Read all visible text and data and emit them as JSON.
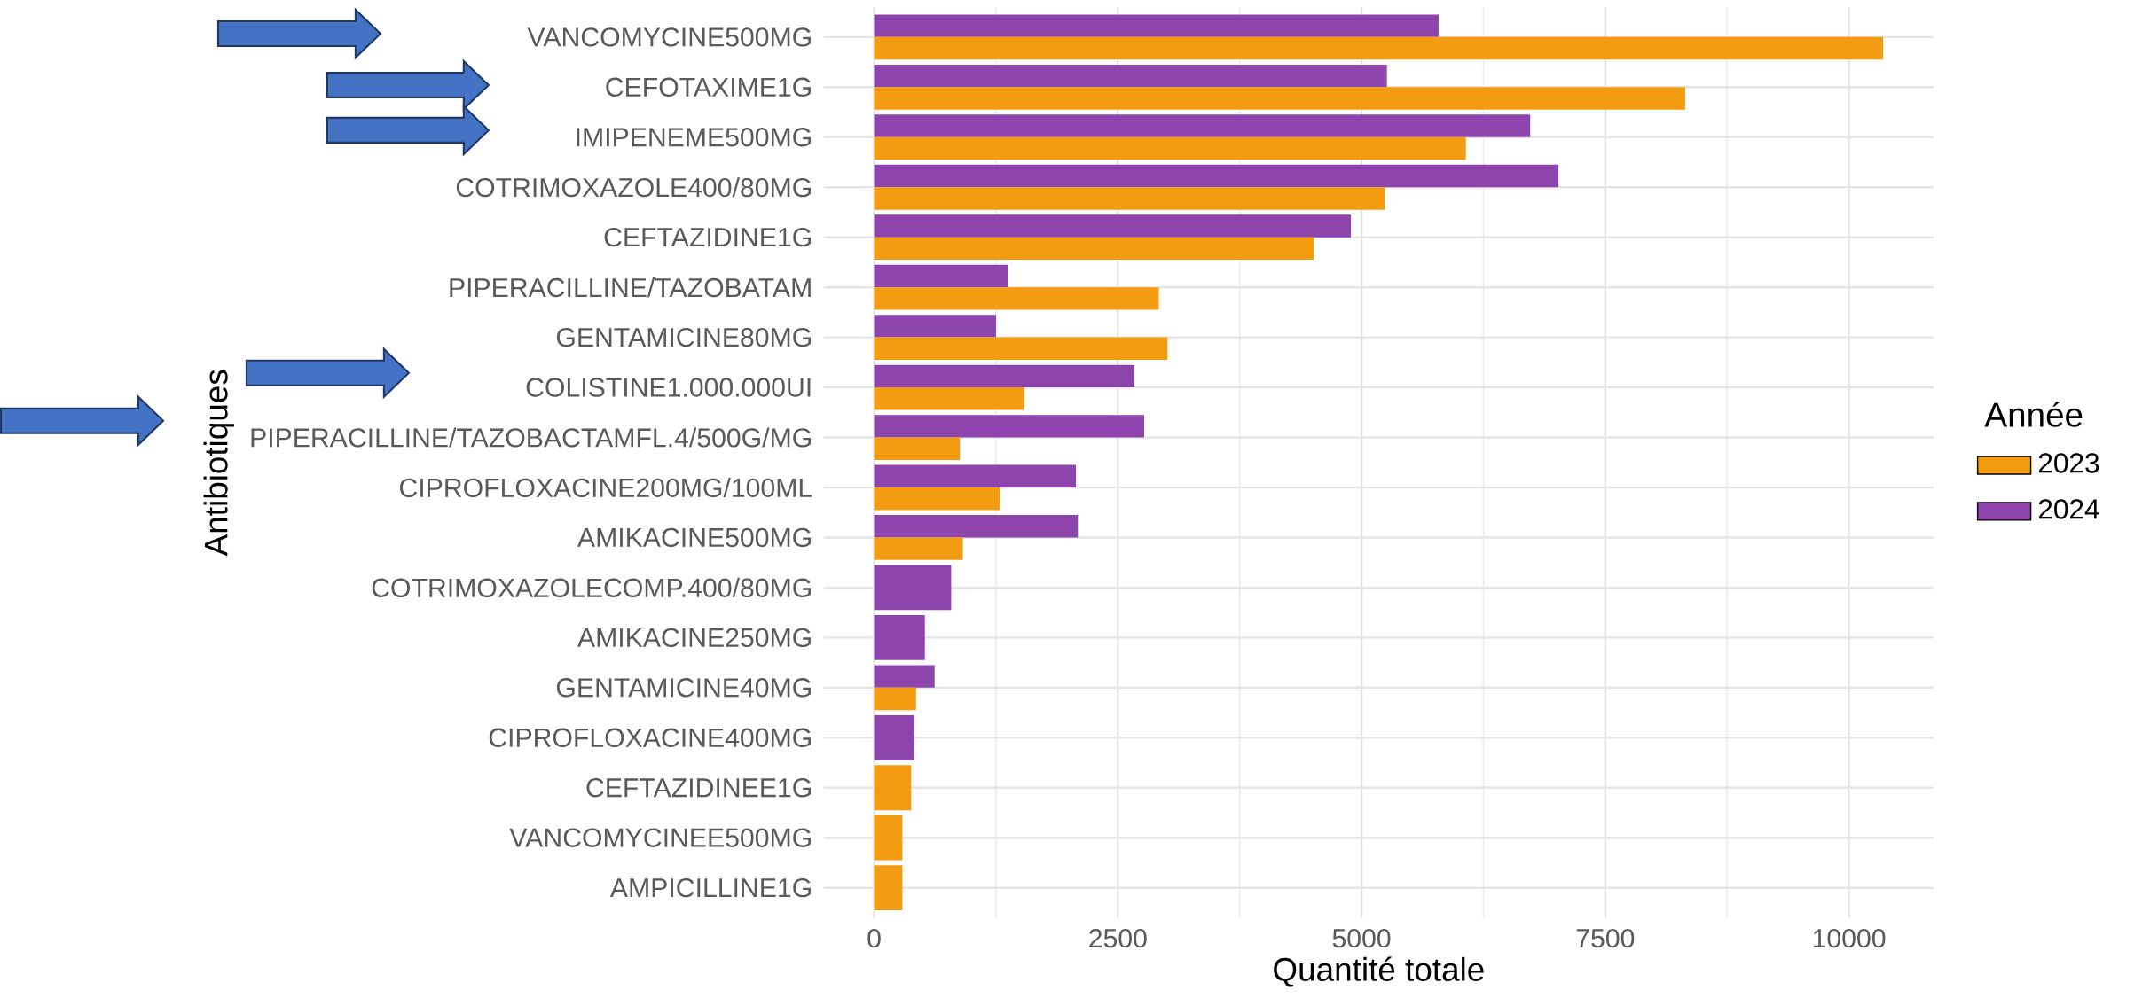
{
  "chart_data": {
    "type": "bar",
    "orientation": "horizontal",
    "xlabel": "Quantité totale",
    "ylabel": "Antibiotiques",
    "legend_title": "Année",
    "categories": [
      "VANCOMYCINE500MG",
      "CEFOTAXIME1G",
      "IMIPENEME500MG",
      "COTRIMOXAZOLE400/80MG",
      "CEFTAZIDINE1G",
      "PIPERACILLINE/TAZOBATAM",
      "GENTAMICINE80MG",
      "COLISTINE1.000.000UI",
      "PIPERACILLINE/TAZOBACTAMFL.4/500G/MG",
      "CIPROFLOXACINE200MG/100ML",
      "AMIKACINE500MG",
      "COTRIMOXAZOLECOMP.400/80MG",
      "AMIKACINE250MG",
      "GENTAMICINE40MG",
      "CIPROFLOXACINE400MG",
      "CEFTAZIDINEE1G",
      "VANCOMYCINEE500MG",
      "AMPICILLINE1G"
    ],
    "series": [
      {
        "name": "2023",
        "color": "#f39c12",
        "values": [
          10350,
          8320,
          6070,
          5240,
          4510,
          2920,
          3010,
          1540,
          880,
          1290,
          910,
          null,
          null,
          430,
          null,
          380,
          290,
          290
        ]
      },
      {
        "name": "2024",
        "color": "#8e44ad",
        "values": [
          5790,
          5260,
          6730,
          7020,
          4890,
          1370,
          1250,
          2670,
          2770,
          2070,
          2090,
          790,
          520,
          620,
          410,
          null,
          null,
          null
        ]
      }
    ],
    "xlim": [
      -518,
      10869
    ],
    "xticks": [
      0,
      2500,
      5000,
      7500,
      10000
    ],
    "grid": true,
    "legend": "right"
  }
}
